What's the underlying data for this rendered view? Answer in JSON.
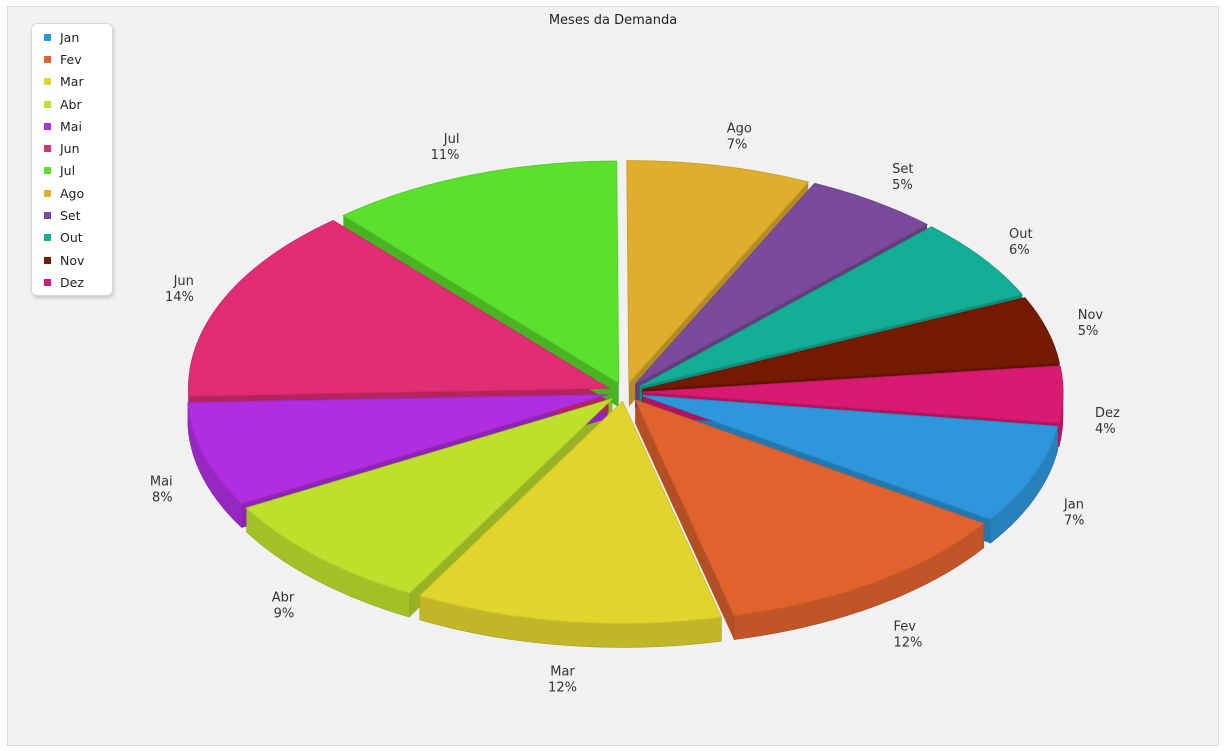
{
  "chart_data": {
    "type": "pie",
    "variant": "3d-exploded",
    "title": "Meses da Demanda",
    "legend_position": "top-left",
    "slices": [
      {
        "label": "Jan",
        "percent_label": "7%",
        "value": 7.2,
        "color": "#2e96db"
      },
      {
        "label": "Fev",
        "percent_label": "12%",
        "value": 11.8,
        "color": "#e0632d"
      },
      {
        "label": "Mar",
        "percent_label": "12%",
        "value": 11.8,
        "color": "#e0d42d"
      },
      {
        "label": "Abr",
        "percent_label": "9%",
        "value": 8.8,
        "color": "#bde02d"
      },
      {
        "label": "Mai",
        "percent_label": "8%",
        "value": 7.6,
        "color": "#b02de0"
      },
      {
        "label": "Jun",
        "percent_label": "14%",
        "value": 14.2,
        "color": "#e02d73"
      },
      {
        "label": "Jul",
        "percent_label": "11%",
        "value": 11.3,
        "color": "#5be02d"
      },
      {
        "label": "Ago",
        "percent_label": "7%",
        "value": 7.1,
        "color": "#e0ae2d"
      },
      {
        "label": "Set",
        "percent_label": "5%",
        "value": 5.2,
        "color": "#7a4b9a"
      },
      {
        "label": "Out",
        "percent_label": "6%",
        "value": 6.0,
        "color": "#13ae95"
      },
      {
        "label": "Nov",
        "percent_label": "5%",
        "value": 4.9,
        "color": "#731a00"
      },
      {
        "label": "Dez",
        "percent_label": "4%",
        "value": 4.1,
        "color": "#d81a73"
      }
    ]
  }
}
